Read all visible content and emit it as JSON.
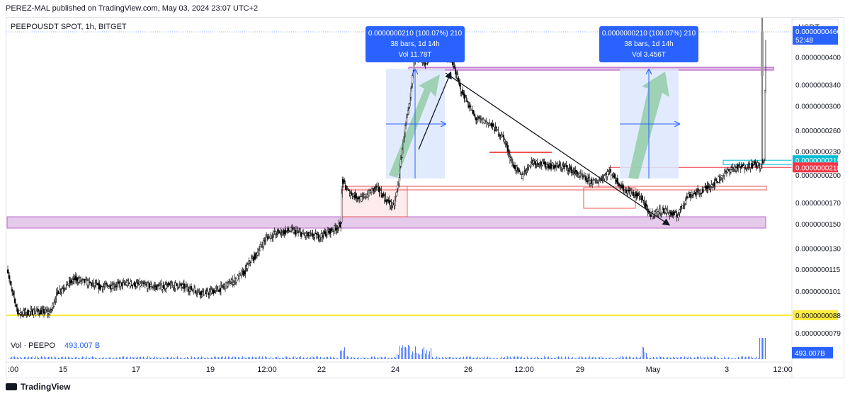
{
  "header": {
    "published_text": "PEREZ-MAL published on TradingView.com, May 03, 2024 23:07 UTC+2"
  },
  "chart": {
    "symbol_title": "PEEPOUSDT SPOT, 1h, BITGET",
    "currency": "USDT",
    "volume_label": "Vol · PEEPO",
    "volume_value": "493.007 B",
    "volume_badge": "493.007B"
  },
  "footer": {
    "brand": "TradingView"
  },
  "colors": {
    "up": "#ffffff",
    "down": "#000000",
    "candle_border": "#000000",
    "zone_purple": "#e1bee7",
    "zone_purple_border": "#ab47bc",
    "zone_red_border": "#ef5350",
    "projection_blue": "#2962ff",
    "projection_bg": "#dde7fd",
    "arrow_green": "#8fcaa1",
    "yellow_line": "#ffeb3b",
    "cyan": "#00bcd4",
    "red_label": "#f23645",
    "price_label": "#2962ff",
    "volume": "#2962ff"
  },
  "annotations": {
    "projection_1": {
      "line1": "0.0000000210 (100.07%) 210",
      "line2": "38 bars, 1d 14h",
      "line3": "Vol 11.78T"
    },
    "projection_2": {
      "line1": "0.0000000210 (100.07%) 210",
      "line2": "38 bars, 1d 14h",
      "line3": "Vol 3.456T"
    }
  },
  "chart_data": {
    "type": "candlestick",
    "title": "PEEPOUSDT SPOT, 1h, BITGET",
    "x_ticks": [
      ":00",
      "15",
      "17",
      "19",
      "12:00",
      "22",
      "24",
      "26",
      "12:00",
      "29",
      "May",
      "3",
      "12:00"
    ],
    "y_ticks": [
      "0.0000000400",
      "0.0000000340",
      "0.0000000300",
      "0.0000000260",
      "0.0000000230",
      "0.0000000200",
      "0.0000000170",
      "0.0000000150",
      "0.0000000130",
      "0.0000000115",
      "0.0000000101",
      "0.0000000079"
    ],
    "price_labels": [
      {
        "value": "0.0000000466",
        "sub": "52:48",
        "color": "#2962ff",
        "price": 46.6
      },
      {
        "value": "0.0000000219",
        "color": "#00bcd4",
        "price": 21.9
      },
      {
        "value": "0.0000000210",
        "color": "#f23645",
        "price": 21.0
      },
      {
        "value": "0.0000000088",
        "color": "#ffeb3b",
        "price": 8.8
      }
    ],
    "ylim_e9": [
      7.6,
      52
    ],
    "scale": "log",
    "key_levels_e9": [
      8.8,
      21.0,
      21.9
    ],
    "last_price_e9": 46.6,
    "volume_last": "493.007B"
  }
}
